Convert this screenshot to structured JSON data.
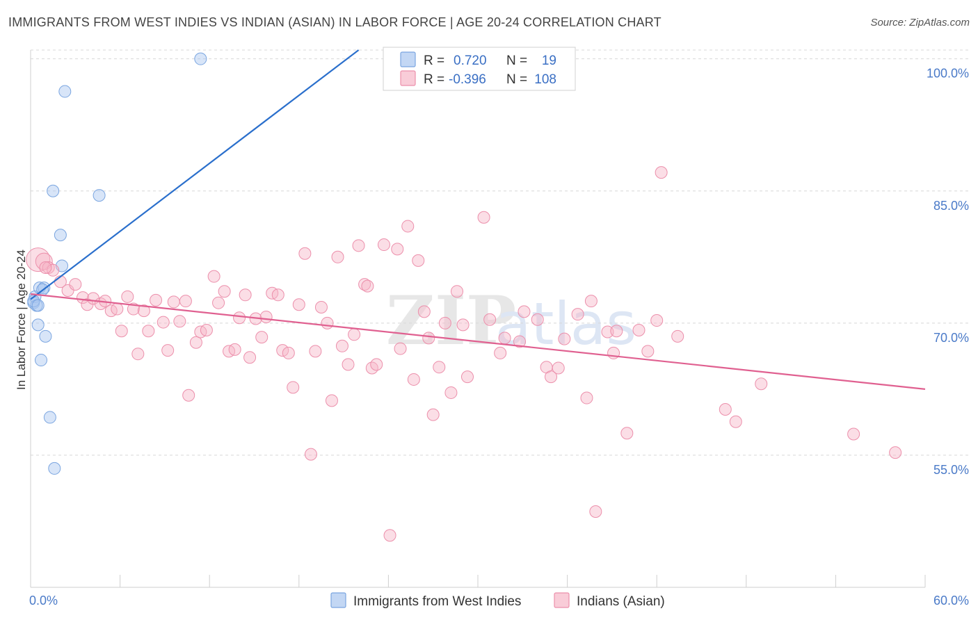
{
  "title": "IMMIGRANTS FROM WEST INDIES VS INDIAN (ASIAN) IN LABOR FORCE | AGE 20-24 CORRELATION CHART",
  "source": "Source: ZipAtlas.com",
  "watermark": "ZIPatlas",
  "chart_data": {
    "type": "scatter",
    "xlabel": "",
    "ylabel": "In Labor Force | Age 20-24",
    "xlim": [
      0,
      60
    ],
    "ylim": [
      40,
      101
    ],
    "x_tick_labels": [
      "0.0%",
      "60.0%"
    ],
    "y_ticks": [
      55,
      70,
      85,
      100
    ],
    "y_tick_labels": [
      "55.0%",
      "70.0%",
      "85.0%",
      "100.0%"
    ],
    "legend": [
      {
        "r_label": "R =",
        "r_value": "0.720",
        "n_label": "N =",
        "n_value": "19",
        "color": "#a9c6f0"
      },
      {
        "r_label": "R =",
        "r_value": "-0.396",
        "n_label": "N =",
        "n_value": "108",
        "color": "#f6b6c8"
      }
    ],
    "series": [
      {
        "name": "Immigrants from West Indies",
        "color": "#a9c6f0",
        "stroke": "#7aa5e0",
        "trend_color": "#2a6fcc",
        "trend": [
          [
            0.0,
            72.7
          ],
          [
            22.0,
            101.0
          ]
        ],
        "points": [
          [
            0.2,
            72.3
          ],
          [
            0.3,
            73.0
          ],
          [
            0.4,
            72.0
          ],
          [
            0.5,
            69.8
          ],
          [
            0.6,
            74.0
          ],
          [
            0.7,
            65.8
          ],
          [
            0.9,
            74.0
          ],
          [
            1.0,
            68.5
          ],
          [
            1.3,
            59.3
          ],
          [
            1.5,
            85.0
          ],
          [
            1.6,
            53.5
          ],
          [
            2.0,
            80.0
          ],
          [
            2.1,
            76.5
          ],
          [
            2.3,
            96.3
          ],
          [
            4.6,
            84.5
          ],
          [
            11.4,
            100.0
          ],
          [
            0.2,
            72.5
          ],
          [
            0.5,
            72.0
          ],
          [
            0.8,
            73.8
          ]
        ]
      },
      {
        "name": "Indians (Asian)",
        "color": "#f6b6c8",
        "stroke": "#ec8fab",
        "trend_color": "#e06090",
        "trend": [
          [
            0.0,
            73.3
          ],
          [
            60.0,
            62.5
          ]
        ],
        "points": [
          [
            0.5,
            77.2
          ],
          [
            0.9,
            77.0
          ],
          [
            1.2,
            76.3
          ],
          [
            1.5,
            76.0
          ],
          [
            2.0,
            74.7
          ],
          [
            2.5,
            73.7
          ],
          [
            3.0,
            74.4
          ],
          [
            3.5,
            72.9
          ],
          [
            3.8,
            72.1
          ],
          [
            4.2,
            72.8
          ],
          [
            4.7,
            72.2
          ],
          [
            5.0,
            72.5
          ],
          [
            5.4,
            71.4
          ],
          [
            5.8,
            71.6
          ],
          [
            6.1,
            69.1
          ],
          [
            6.5,
            73.0
          ],
          [
            6.9,
            71.6
          ],
          [
            7.2,
            66.5
          ],
          [
            7.6,
            71.4
          ],
          [
            7.9,
            69.1
          ],
          [
            8.4,
            72.6
          ],
          [
            8.9,
            70.1
          ],
          [
            9.2,
            66.9
          ],
          [
            9.6,
            72.4
          ],
          [
            10.0,
            70.2
          ],
          [
            10.4,
            72.5
          ],
          [
            10.6,
            61.8
          ],
          [
            11.1,
            67.8
          ],
          [
            11.4,
            69.0
          ],
          [
            11.8,
            69.2
          ],
          [
            12.3,
            75.3
          ],
          [
            12.6,
            72.3
          ],
          [
            13.0,
            73.6
          ],
          [
            13.3,
            66.8
          ],
          [
            13.7,
            67.0
          ],
          [
            14.0,
            70.6
          ],
          [
            14.4,
            73.2
          ],
          [
            14.7,
            66.1
          ],
          [
            15.1,
            70.5
          ],
          [
            15.5,
            68.4
          ],
          [
            15.8,
            70.7
          ],
          [
            16.2,
            73.4
          ],
          [
            16.6,
            73.2
          ],
          [
            16.9,
            66.9
          ],
          [
            17.3,
            66.6
          ],
          [
            17.6,
            62.7
          ],
          [
            18.0,
            72.1
          ],
          [
            18.4,
            77.9
          ],
          [
            18.8,
            55.1
          ],
          [
            19.1,
            66.8
          ],
          [
            19.5,
            71.8
          ],
          [
            19.9,
            70.0
          ],
          [
            20.2,
            61.2
          ],
          [
            20.6,
            77.5
          ],
          [
            20.9,
            67.4
          ],
          [
            21.3,
            65.3
          ],
          [
            21.7,
            68.7
          ],
          [
            22.0,
            78.8
          ],
          [
            22.4,
            74.4
          ],
          [
            22.6,
            74.2
          ],
          [
            22.9,
            64.9
          ],
          [
            23.2,
            65.3
          ],
          [
            23.7,
            78.9
          ],
          [
            24.1,
            45.9
          ],
          [
            24.6,
            78.4
          ],
          [
            24.8,
            67.1
          ],
          [
            25.3,
            81.0
          ],
          [
            25.7,
            63.6
          ],
          [
            26.0,
            77.1
          ],
          [
            26.4,
            71.3
          ],
          [
            26.7,
            68.3
          ],
          [
            27.0,
            59.6
          ],
          [
            27.4,
            65.0
          ],
          [
            27.8,
            70.0
          ],
          [
            28.2,
            62.1
          ],
          [
            28.6,
            73.6
          ],
          [
            29.0,
            69.8
          ],
          [
            29.3,
            63.9
          ],
          [
            30.4,
            82.0
          ],
          [
            30.8,
            70.4
          ],
          [
            31.5,
            66.6
          ],
          [
            31.8,
            68.3
          ],
          [
            32.8,
            67.9
          ],
          [
            33.1,
            71.3
          ],
          [
            34.0,
            70.4
          ],
          [
            34.6,
            65.0
          ],
          [
            34.9,
            63.9
          ],
          [
            35.4,
            64.9
          ],
          [
            35.8,
            68.2
          ],
          [
            36.7,
            71.0
          ],
          [
            37.3,
            61.5
          ],
          [
            37.6,
            72.5
          ],
          [
            37.9,
            48.6
          ],
          [
            38.7,
            69.0
          ],
          [
            39.1,
            66.6
          ],
          [
            39.3,
            69.1
          ],
          [
            40.0,
            57.5
          ],
          [
            40.8,
            69.2
          ],
          [
            41.4,
            66.8
          ],
          [
            42.0,
            70.3
          ],
          [
            42.3,
            87.1
          ],
          [
            43.4,
            68.5
          ],
          [
            46.6,
            60.2
          ],
          [
            47.3,
            58.8
          ],
          [
            49.0,
            63.1
          ],
          [
            55.2,
            57.4
          ],
          [
            58.0,
            55.3
          ],
          [
            1.0,
            76.3
          ]
        ]
      }
    ]
  },
  "bottom_legend": [
    {
      "label": "Immigrants from West Indies",
      "color": "#a9c6f0"
    },
    {
      "label": "Indians (Asian)",
      "color": "#f6b6c8"
    }
  ]
}
